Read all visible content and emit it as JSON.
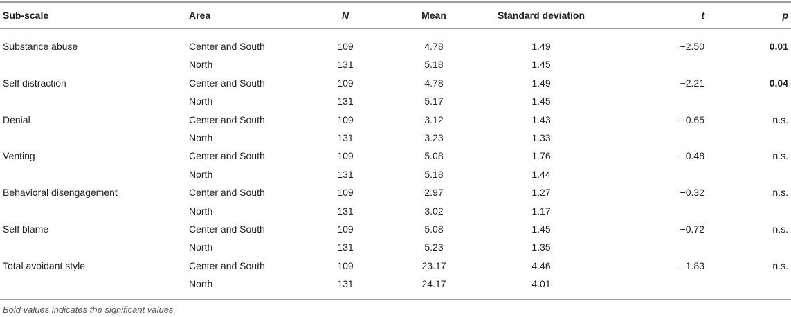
{
  "table": {
    "columns": [
      "Sub-scale",
      "Area",
      "N",
      "Mean",
      "Standard deviation",
      "t",
      "p"
    ],
    "italic_columns": [
      2,
      5,
      6
    ],
    "rows": [
      [
        "Substance abuse",
        "Center and South",
        109,
        4.78,
        1.49,
        "−2.50",
        "0.01"
      ],
      [
        null,
        "North",
        131,
        5.18,
        1.45,
        null,
        null
      ],
      [
        "Self distraction",
        "Center and South",
        109,
        4.78,
        1.49,
        "−2.21",
        "0.04"
      ],
      [
        null,
        "North",
        131,
        5.17,
        1.45,
        null,
        null
      ],
      [
        "Denial",
        "Center and South",
        109,
        3.12,
        1.43,
        "−0.65",
        "n.s."
      ],
      [
        null,
        "North",
        131,
        3.23,
        1.33,
        null,
        null
      ],
      [
        "Venting",
        "Center and South",
        109,
        5.08,
        1.76,
        "−0.48",
        "n.s."
      ],
      [
        null,
        "North",
        131,
        5.18,
        1.44,
        null,
        null
      ],
      [
        "Behavioral disengagement",
        "Center and South",
        109,
        2.97,
        1.27,
        "−0.32",
        "n.s."
      ],
      [
        null,
        "North",
        131,
        3.02,
        1.17,
        null,
        null
      ],
      [
        "Self blame",
        "Center and South",
        109,
        5.08,
        1.45,
        "−0.72",
        "n.s."
      ],
      [
        null,
        "North",
        131,
        5.23,
        1.35,
        null,
        null
      ],
      [
        "Total avoidant style",
        "Center and South",
        109,
        23.17,
        4.46,
        "−1.83",
        "n.s."
      ],
      [
        null,
        "North",
        131,
        24.17,
        4.01,
        null,
        null
      ]
    ],
    "bold_p_rows": [
      0,
      2
    ],
    "footnote": "Bold values indicates the significant values."
  }
}
